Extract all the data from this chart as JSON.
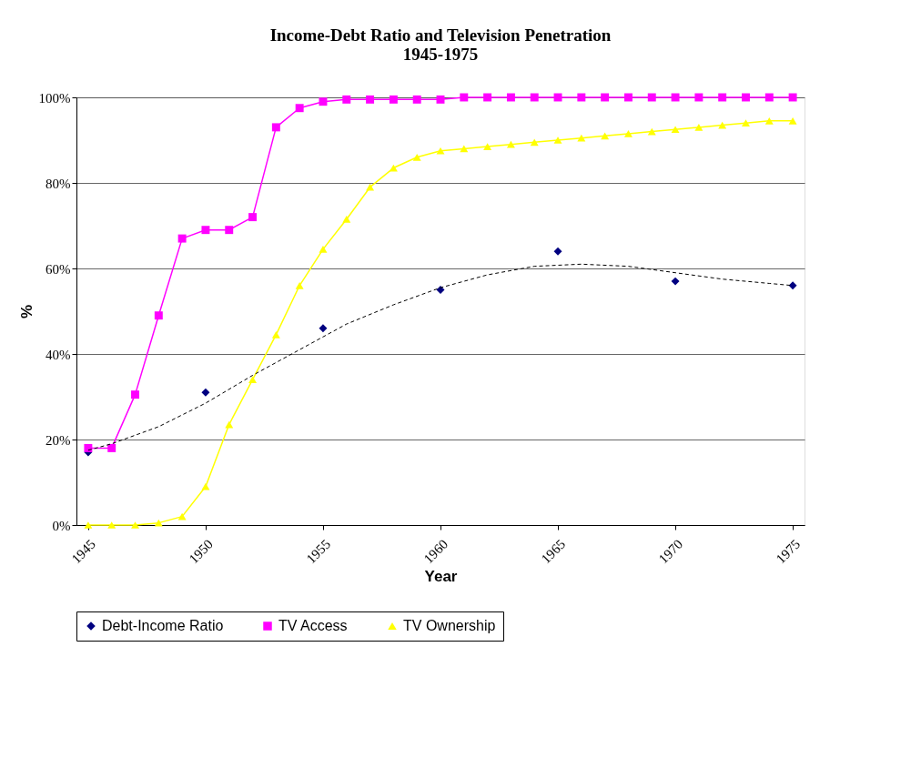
{
  "chart_data": {
    "type": "line",
    "title": "Income-Debt Ratio and Television Penetration\n1945-1975",
    "xlabel": "Year",
    "ylabel": "%",
    "x": [
      1945,
      1946,
      1947,
      1948,
      1949,
      1950,
      1951,
      1952,
      1953,
      1954,
      1955,
      1956,
      1957,
      1958,
      1959,
      1960,
      1961,
      1962,
      1963,
      1964,
      1965,
      1966,
      1967,
      1968,
      1969,
      1970,
      1971,
      1972,
      1973,
      1974,
      1975
    ],
    "xlim": [
      1944.5,
      1975.5
    ],
    "xticks": [
      1945,
      1950,
      1955,
      1960,
      1965,
      1970,
      1975
    ],
    "ylim": [
      0,
      100
    ],
    "yticks": [
      {
        "value": 0,
        "label": "0%"
      },
      {
        "value": 20,
        "label": "20%"
      },
      {
        "value": 40,
        "label": "40%"
      },
      {
        "value": 60,
        "label": "60%"
      },
      {
        "value": 80,
        "label": "80%"
      },
      {
        "value": 100,
        "label": "100%"
      }
    ],
    "grid": "y",
    "legend": "bottom",
    "series": [
      {
        "name": "Debt-Income Ratio",
        "type": "scatter",
        "marker": "diamond",
        "color": "#000080",
        "x": [
          1945,
          1950,
          1955,
          1960,
          1965,
          1970,
          1975
        ],
        "values": [
          17,
          31,
          46,
          55,
          64,
          57,
          56
        ]
      },
      {
        "name": "TV Access",
        "marker": "square",
        "color": "#ff00ff",
        "values": [
          18,
          18,
          30.5,
          49,
          67,
          69,
          69,
          72,
          93,
          97.5,
          99,
          99.5,
          99.5,
          99.5,
          99.5,
          99.5,
          100,
          100,
          100,
          100,
          100,
          100,
          100,
          100,
          100,
          100,
          100,
          100,
          100,
          100,
          100
        ]
      },
      {
        "name": "TV Ownership",
        "marker": "triangle",
        "color": "#ffff00",
        "values": [
          0,
          0,
          0,
          0.5,
          2,
          9,
          23.5,
          34,
          44.5,
          56,
          64.5,
          71.5,
          79,
          83.5,
          86,
          87.5,
          88,
          88.5,
          89,
          89.5,
          90,
          90.5,
          91,
          91.5,
          92,
          92.5,
          93,
          93.5,
          94,
          94.5,
          94.5
        ]
      },
      {
        "marker": "none",
        "line_style": "dashed",
        "color": "#000000",
        "x": [
          1945,
          1946,
          1948,
          1950,
          1952,
          1954,
          1956,
          1958,
          1960,
          1962,
          1964,
          1966,
          1968,
          1970,
          1972,
          1974,
          1975
        ],
        "values": [
          17.5,
          19,
          23,
          28.5,
          35,
          41,
          47,
          51.5,
          55.5,
          58.5,
          60.5,
          61,
          60.5,
          59,
          57.5,
          56.5,
          56
        ]
      }
    ]
  }
}
